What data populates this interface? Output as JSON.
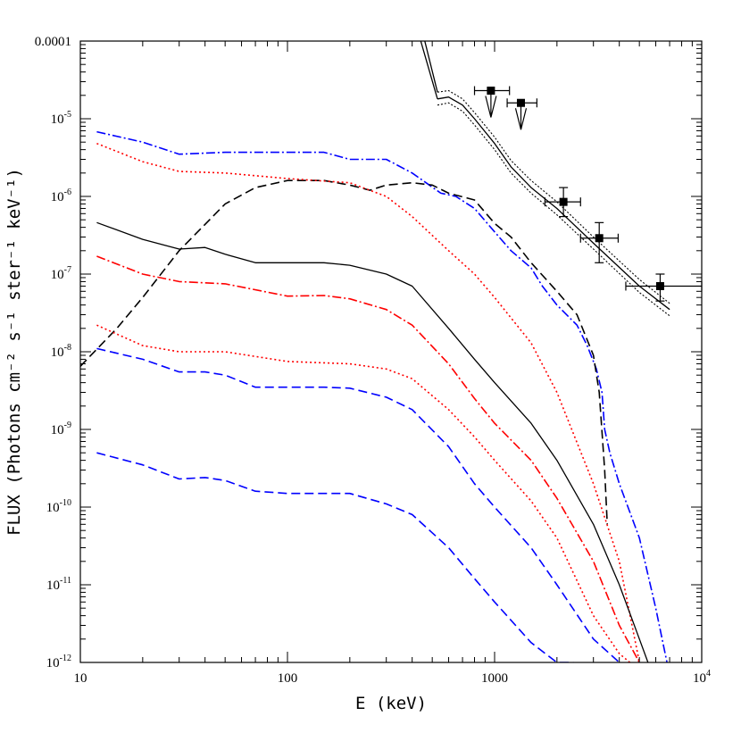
{
  "chart_data": {
    "type": "line",
    "xlabel": "E (keV)",
    "ylabel": "FLUX (Photons cm⁻² s⁻¹ ster⁻¹ keV⁻¹)",
    "xscale": "log",
    "yscale": "log",
    "xlim": [
      10,
      10000
    ],
    "ylim": [
      1e-12,
      0.0001
    ],
    "grid": false,
    "legend": "none",
    "x_ticks": [
      {
        "value": 10,
        "label": "10"
      },
      {
        "value": 100,
        "label": "100"
      },
      {
        "value": 1000,
        "label": "1000"
      },
      {
        "value": 10000,
        "label": "10",
        "sup": "4"
      }
    ],
    "y_ticks": [
      {
        "value": 1e-12,
        "label": "10",
        "sup": "-12"
      },
      {
        "value": 1e-11,
        "label": "10",
        "sup": "-11"
      },
      {
        "value": 1e-10,
        "label": "10",
        "sup": "-10"
      },
      {
        "value": 1e-09,
        "label": "10",
        "sup": "-9"
      },
      {
        "value": 1e-08,
        "label": "10",
        "sup": "-8"
      },
      {
        "value": 1e-07,
        "label": "10",
        "sup": "-7"
      },
      {
        "value": 1e-06,
        "label": "10",
        "sup": "-6"
      },
      {
        "value": 1e-05,
        "label": "10",
        "sup": "-5"
      },
      {
        "value": 0.0001,
        "label": "0.0001",
        "sup": ""
      }
    ],
    "series": [
      {
        "color": "#0000ff",
        "dash": "10,3,2,3",
        "width": 1.6,
        "x": [
          12,
          20,
          30,
          50,
          100,
          150,
          200,
          300,
          400,
          550,
          650,
          800,
          1000,
          1200,
          1500,
          1700,
          2000,
          2500,
          2800,
          3100,
          3300,
          3400,
          3600,
          4000,
          5000,
          6000,
          6800
        ],
        "y": [
          6.8e-06,
          5e-06,
          3.5e-06,
          3.7e-06,
          3.7e-06,
          3.7e-06,
          3e-06,
          3e-06,
          2e-06,
          1.1e-06,
          1e-06,
          7e-07,
          3.5e-07,
          2e-07,
          1.2e-07,
          7e-08,
          4e-08,
          2.2e-08,
          1.2e-08,
          6e-09,
          3e-09,
          1e-09,
          5e-10,
          2e-10,
          4e-11,
          5e-12,
          1e-12
        ]
      },
      {
        "color": "#000000",
        "dash": "10,5",
        "width": 1.6,
        "x": [
          10,
          15,
          20,
          30,
          50,
          70,
          100,
          150,
          200,
          250,
          300,
          400,
          500,
          600,
          800,
          1000,
          1200,
          1500,
          2000,
          2500,
          3000,
          3200,
          3400,
          3500
        ],
        "y": [
          6.5e-09,
          2e-08,
          5e-08,
          2e-07,
          8e-07,
          1.3e-06,
          1.6e-06,
          1.6e-06,
          1.4e-06,
          1.2e-06,
          1.4e-06,
          1.5e-06,
          1.4e-06,
          1.1e-06,
          9e-07,
          4.5e-07,
          3e-07,
          1.4e-07,
          6e-08,
          3e-08,
          9e-09,
          3e-09,
          3e-10,
          6e-11
        ]
      },
      {
        "color": "#ff0000",
        "dash": "2,3",
        "width": 1.6,
        "x": [
          12,
          20,
          30,
          50,
          100,
          200,
          300,
          400,
          600,
          800,
          1000,
          1500,
          2000,
          3000,
          4000,
          5000
        ],
        "y": [
          4.8e-06,
          2.8e-06,
          2.1e-06,
          2e-06,
          1.7e-06,
          1.5e-06,
          1e-06,
          5.5e-07,
          2e-07,
          1e-07,
          5e-08,
          1.3e-08,
          3e-09,
          2e-10,
          2e-11,
          1e-12
        ]
      },
      {
        "color": "#000000",
        "dash": "",
        "width": 1.3,
        "x": [
          12,
          20,
          30,
          40,
          50,
          70,
          100,
          150,
          200,
          300,
          400,
          600,
          800,
          1000,
          1500,
          2000,
          3000,
          4000,
          5000,
          5500
        ],
        "y": [
          4.6e-07,
          2.8e-07,
          2.1e-07,
          2.2e-07,
          1.8e-07,
          1.4e-07,
          1.4e-07,
          1.4e-07,
          1.3e-07,
          1e-07,
          7e-08,
          2e-08,
          8e-09,
          4e-09,
          1.2e-09,
          4e-10,
          6e-11,
          1e-11,
          2e-12,
          1e-12
        ]
      },
      {
        "color": "#ff0000",
        "dash": "10,3,2,3",
        "width": 1.6,
        "x": [
          12,
          20,
          30,
          50,
          100,
          150,
          200,
          300,
          400,
          600,
          800,
          1000,
          1500,
          2000,
          3000,
          4000,
          5000
        ],
        "y": [
          1.7e-07,
          1e-07,
          8e-08,
          7.5e-08,
          5.2e-08,
          5.3e-08,
          4.8e-08,
          3.5e-08,
          2.2e-08,
          7e-09,
          2.5e-09,
          1.2e-09,
          4e-10,
          1.3e-10,
          2e-11,
          3e-12,
          1e-12
        ]
      },
      {
        "color": "#ff0000",
        "dash": "2,3",
        "width": 1.6,
        "x": [
          12,
          20,
          30,
          50,
          100,
          200,
          300,
          400,
          600,
          800,
          1000,
          1500,
          2000,
          3000,
          4000,
          4500
        ],
        "y": [
          2.2e-08,
          1.2e-08,
          1e-08,
          1e-08,
          7.5e-09,
          7e-09,
          6e-09,
          4.5e-09,
          1.8e-09,
          8e-10,
          4e-10,
          1.2e-10,
          4e-11,
          4e-12,
          1.3e-12,
          1e-12
        ]
      },
      {
        "color": "#0000ff",
        "dash": "10,5",
        "width": 1.6,
        "x": [
          12,
          20,
          30,
          40,
          50,
          70,
          100,
          150,
          200,
          300,
          400,
          600,
          800,
          1000,
          1500,
          2000,
          3000,
          4000
        ],
        "y": [
          1.1e-08,
          8e-09,
          5.5e-09,
          5.5e-09,
          5e-09,
          3.5e-09,
          3.5e-09,
          3.5e-09,
          3.4e-09,
          2.6e-09,
          1.8e-09,
          6e-10,
          2e-10,
          1e-10,
          3e-11,
          1e-11,
          2e-12,
          1e-12
        ]
      },
      {
        "color": "#0000ff",
        "dash": "10,5",
        "width": 1.6,
        "x": [
          12,
          20,
          30,
          40,
          50,
          70,
          100,
          150,
          200,
          300,
          400,
          600,
          800,
          1000,
          1500,
          2000,
          2400
        ],
        "y": [
          5e-10,
          3.5e-10,
          2.3e-10,
          2.4e-10,
          2.2e-10,
          1.6e-10,
          1.5e-10,
          1.5e-10,
          1.5e-10,
          1.1e-10,
          8e-11,
          3e-11,
          1.2e-11,
          6e-12,
          1.8e-12,
          1e-12,
          1e-12
        ]
      },
      {
        "color": "#000000",
        "dash": "",
        "width": 1.3,
        "x": [
          530,
          600,
          700,
          800,
          1000,
          1200,
          1500,
          2000,
          3000,
          5000,
          7000
        ],
        "y": [
          1.8e-05,
          1.9e-05,
          1.5e-05,
          1e-05,
          4.8e-06,
          2.4e-06,
          1.3e-06,
          7e-07,
          2.5e-07,
          7e-08,
          3.5e-08
        ]
      },
      {
        "color": "#000000",
        "dash": "2,2",
        "width": 1.1,
        "x": [
          530,
          600,
          700,
          800,
          1000,
          1200,
          1500,
          2000,
          3000,
          5000,
          7000
        ],
        "y": [
          2.2e-05,
          2.3e-05,
          1.8e-05,
          1.2e-05,
          5.8e-06,
          2.9e-06,
          1.6e-06,
          8.5e-07,
          3e-07,
          8.5e-08,
          4.2e-08
        ]
      },
      {
        "color": "#000000",
        "dash": "2,2",
        "width": 1.1,
        "x": [
          530,
          600,
          700,
          800,
          1000,
          1200,
          1500,
          2000,
          3000,
          5000,
          7000
        ],
        "y": [
          1.5e-05,
          1.6e-05,
          1.25e-05,
          8.3e-06,
          4e-06,
          2e-06,
          1.1e-06,
          5.8e-07,
          2.1e-07,
          5.8e-08,
          2.9e-08
        ]
      },
      {
        "color": "#000000",
        "dash": "",
        "width": 1.3,
        "x": [
          440,
          530
        ],
        "y": [
          0.0001,
          1.8e-05
        ]
      },
      {
        "color": "#000000",
        "dash": "",
        "width": 1.3,
        "x": [
          460,
          530
        ],
        "y": [
          0.0001,
          2.2e-05
        ]
      }
    ],
    "data_points": [
      {
        "x": 960,
        "y": 2.3e-05,
        "xerr": [
          800,
          1180
        ],
        "upper_limit": true
      },
      {
        "x": 1340,
        "y": 1.6e-05,
        "xerr": [
          1150,
          1600
        ],
        "upper_limit": true
      },
      {
        "x": 2150,
        "y": 8.5e-07,
        "xerr": [
          1750,
          2600
        ],
        "yerr": [
          5.5e-07,
          1.3e-06
        ]
      },
      {
        "x": 3200,
        "y": 2.9e-07,
        "xerr": [
          2600,
          3950
        ],
        "yerr": [
          1.4e-07,
          4.6e-07
        ]
      },
      {
        "x": 6300,
        "y": 7e-08,
        "xerr": [
          4300,
          10000
        ],
        "yerr": [
          4.5e-08,
          1e-07
        ]
      }
    ]
  }
}
